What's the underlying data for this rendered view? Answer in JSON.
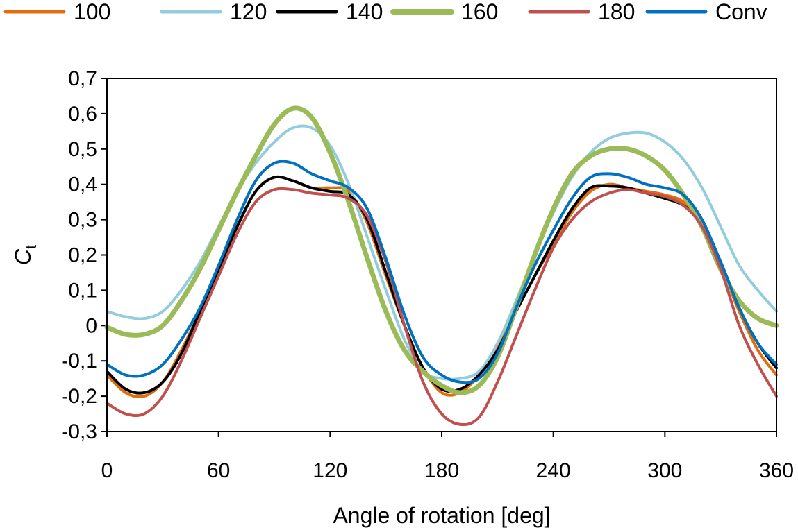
{
  "chart_data": {
    "type": "line",
    "title": "",
    "xlabel": "Angle of rotation [deg]",
    "ylabel": "C",
    "ylabel_subscript": "t",
    "xlim": [
      0,
      360
    ],
    "ylim": [
      -0.3,
      0.7
    ],
    "xticks": [
      0,
      60,
      120,
      180,
      240,
      300,
      360
    ],
    "xtick_labels": [
      "0",
      "60",
      "120",
      "180",
      "240",
      "300",
      "360"
    ],
    "yticks": [
      -0.3,
      -0.2,
      -0.1,
      0,
      0.1,
      0.2,
      0.3,
      0.4,
      0.5,
      0.6,
      0.7
    ],
    "ytick_labels": [
      "-0,3",
      "-0,2",
      "-0,1",
      "0",
      "0,1",
      "0,2",
      "0,3",
      "0,4",
      "0,5",
      "0,6",
      "0,7"
    ],
    "grid": false,
    "legend_position": "top",
    "x": [
      0,
      10,
      20,
      30,
      40,
      50,
      60,
      70,
      80,
      90,
      100,
      110,
      120,
      130,
      140,
      150,
      160,
      170,
      180,
      190,
      200,
      210,
      220,
      230,
      240,
      250,
      260,
      270,
      280,
      290,
      300,
      310,
      320,
      330,
      340,
      350,
      360
    ],
    "series": [
      {
        "name": "100",
        "color": "#E46C0A",
        "width": 4,
        "values": [
          -0.14,
          -0.19,
          -0.2,
          -0.16,
          -0.07,
          0.04,
          0.16,
          0.28,
          0.38,
          0.42,
          0.41,
          0.39,
          0.39,
          0.38,
          0.29,
          0.14,
          0.0,
          -0.12,
          -0.19,
          -0.19,
          -0.14,
          -0.06,
          0.04,
          0.14,
          0.23,
          0.32,
          0.38,
          0.4,
          0.39,
          0.38,
          0.37,
          0.35,
          0.29,
          0.17,
          0.04,
          -0.07,
          -0.14
        ]
      },
      {
        "name": "120",
        "color": "#93CDDD",
        "width": 4,
        "values": [
          0.04,
          0.025,
          0.02,
          0.04,
          0.1,
          0.18,
          0.28,
          0.38,
          0.46,
          0.52,
          0.56,
          0.56,
          0.51,
          0.4,
          0.25,
          0.1,
          -0.04,
          -0.13,
          -0.15,
          -0.15,
          -0.13,
          -0.05,
          0.07,
          0.2,
          0.32,
          0.42,
          0.49,
          0.53,
          0.545,
          0.545,
          0.52,
          0.47,
          0.39,
          0.28,
          0.17,
          0.1,
          0.04
        ]
      },
      {
        "name": "140",
        "color": "#000000",
        "width": 4,
        "values": [
          -0.13,
          -0.18,
          -0.19,
          -0.16,
          -0.08,
          0.04,
          0.16,
          0.28,
          0.38,
          0.42,
          0.41,
          0.39,
          0.38,
          0.37,
          0.3,
          0.15,
          0.0,
          -0.12,
          -0.18,
          -0.18,
          -0.14,
          -0.07,
          0.04,
          0.14,
          0.24,
          0.33,
          0.39,
          0.395,
          0.39,
          0.375,
          0.36,
          0.34,
          0.29,
          0.18,
          0.05,
          -0.05,
          -0.12
        ]
      },
      {
        "name": "160",
        "color": "#9BBB59",
        "width": 7,
        "values": [
          -0.005,
          -0.025,
          -0.025,
          0.0,
          0.07,
          0.16,
          0.27,
          0.38,
          0.48,
          0.57,
          0.615,
          0.59,
          0.49,
          0.35,
          0.19,
          0.04,
          -0.07,
          -0.13,
          -0.17,
          -0.19,
          -0.17,
          -0.09,
          0.05,
          0.2,
          0.33,
          0.43,
          0.48,
          0.5,
          0.5,
          0.48,
          0.44,
          0.37,
          0.28,
          0.16,
          0.07,
          0.02,
          0.0
        ]
      },
      {
        "name": "180",
        "color": "#C0504D",
        "width": 4,
        "values": [
          -0.22,
          -0.25,
          -0.25,
          -0.2,
          -0.1,
          0.02,
          0.14,
          0.26,
          0.35,
          0.385,
          0.385,
          0.375,
          0.37,
          0.36,
          0.31,
          0.18,
          0.0,
          -0.16,
          -0.25,
          -0.28,
          -0.26,
          -0.16,
          -0.03,
          0.1,
          0.22,
          0.3,
          0.35,
          0.375,
          0.385,
          0.375,
          0.365,
          0.34,
          0.28,
          0.16,
          0.0,
          -0.11,
          -0.2
        ]
      },
      {
        "name": "Conv",
        "color": "#0070C0",
        "width": 4,
        "values": [
          -0.11,
          -0.14,
          -0.14,
          -0.11,
          -0.04,
          0.05,
          0.17,
          0.3,
          0.41,
          0.46,
          0.46,
          0.43,
          0.41,
          0.39,
          0.33,
          0.19,
          0.03,
          -0.09,
          -0.14,
          -0.16,
          -0.15,
          -0.08,
          0.05,
          0.17,
          0.27,
          0.36,
          0.42,
          0.43,
          0.42,
          0.4,
          0.39,
          0.37,
          0.3,
          0.18,
          0.05,
          -0.05,
          -0.11
        ]
      }
    ]
  }
}
